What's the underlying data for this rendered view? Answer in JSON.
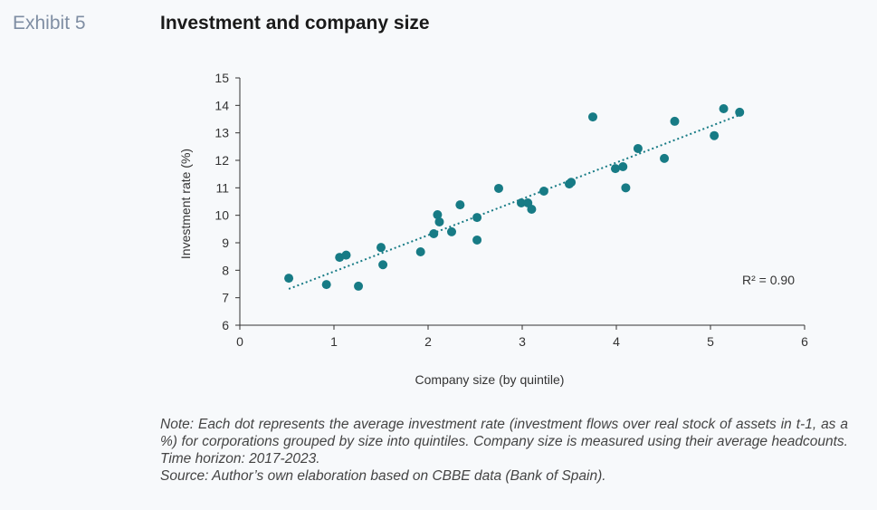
{
  "header": {
    "exhibit": "Exhibit 5",
    "title": "Investment and company size"
  },
  "chart_data": {
    "type": "scatter",
    "title": "Investment and company size",
    "xlabel": "Company size (by quintile)",
    "ylabel": "Investment rate (%)",
    "xlim": [
      0,
      6
    ],
    "ylim": [
      6,
      15
    ],
    "xticks": [
      "0",
      "1",
      "2",
      "3",
      "4",
      "5",
      "6"
    ],
    "yticks": [
      "6",
      "7",
      "8",
      "9",
      "10",
      "11",
      "12",
      "13",
      "14",
      "15"
    ],
    "grid": false,
    "color": "#177b85",
    "points": [
      [
        0.52,
        7.71
      ],
      [
        0.92,
        7.48
      ],
      [
        1.06,
        8.47
      ],
      [
        1.13,
        8.55
      ],
      [
        1.26,
        7.42
      ],
      [
        1.5,
        8.83
      ],
      [
        1.52,
        8.2
      ],
      [
        1.92,
        8.67
      ],
      [
        2.06,
        9.33
      ],
      [
        2.1,
        10.02
      ],
      [
        2.12,
        9.76
      ],
      [
        2.25,
        9.4
      ],
      [
        2.34,
        10.38
      ],
      [
        2.52,
        9.92
      ],
      [
        2.52,
        9.1
      ],
      [
        2.75,
        10.98
      ],
      [
        2.99,
        10.45
      ],
      [
        3.06,
        10.45
      ],
      [
        3.1,
        10.22
      ],
      [
        3.23,
        10.88
      ],
      [
        3.5,
        11.14
      ],
      [
        3.52,
        11.2
      ],
      [
        3.75,
        13.58
      ],
      [
        3.99,
        11.7
      ],
      [
        4.07,
        11.77
      ],
      [
        4.1,
        11.0
      ],
      [
        4.23,
        12.43
      ],
      [
        4.51,
        12.07
      ],
      [
        4.62,
        13.42
      ],
      [
        5.04,
        12.9
      ],
      [
        5.14,
        13.88
      ],
      [
        5.31,
        13.75
      ]
    ],
    "trendline": {
      "type": "linear",
      "from": [
        0.52,
        7.32
      ],
      "to": [
        5.31,
        13.65
      ],
      "style": "dotted"
    },
    "annotation": "R² = 0.90"
  },
  "note": {
    "line1": "Note: Each dot represents the average investment rate (investment flows over real stock of assets in t-1, as a %) for corporations grouped by size into quintiles. Company size is measured using their average headcounts. Time horizon: 2017-2023.",
    "line2": "Source: Author’s own elaboration based on CBBE data (Bank of Spain)."
  }
}
